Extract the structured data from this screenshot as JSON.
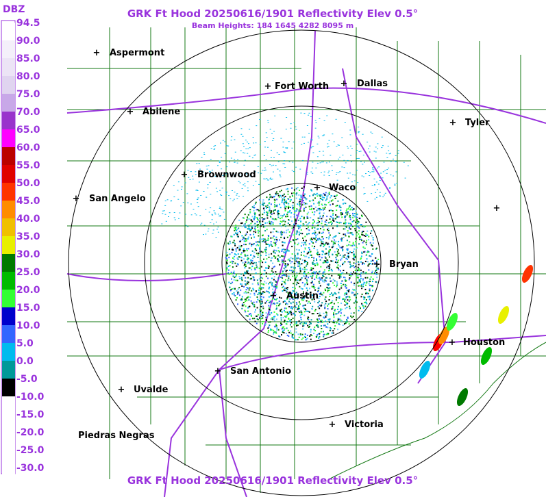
{
  "header": {
    "title": "GRK Ft Hood 20250616/1901 Reflectivity Elev 0.5°",
    "subtitle": "Beam Heights: 184 1645 4282 8095 m"
  },
  "footer": {
    "title": "GRK Ft Hood 20250616/1901 Reflectivity Elev 0.5°"
  },
  "legend": {
    "unit": "DBZ",
    "items": [
      {
        "label": "94.5",
        "color": "#ffffff"
      },
      {
        "label": "90.0",
        "color": "#f4f0fa"
      },
      {
        "label": "85.0",
        "color": "#ece4f6"
      },
      {
        "label": "80.0",
        "color": "#e0d4f0"
      },
      {
        "label": "75.0",
        "color": "#c8a8e8"
      },
      {
        "label": "70.0",
        "color": "#9933cc"
      },
      {
        "label": "65.0",
        "color": "#ff00ff"
      },
      {
        "label": "60.0",
        "color": "#bb0000"
      },
      {
        "label": "55.0",
        "color": "#e00000"
      },
      {
        "label": "50.0",
        "color": "#ff3300"
      },
      {
        "label": "45.0",
        "color": "#ff8c00"
      },
      {
        "label": "40.0",
        "color": "#f0c000"
      },
      {
        "label": "35.0",
        "color": "#e8f000"
      },
      {
        "label": "30.0",
        "color": "#007a00"
      },
      {
        "label": "25.0",
        "color": "#00bb00"
      },
      {
        "label": "20.0",
        "color": "#33ff33"
      },
      {
        "label": "15.0",
        "color": "#0000cc"
      },
      {
        "label": "10.0",
        "color": "#3366ff"
      },
      {
        "label": "5.0",
        "color": "#00bbee"
      },
      {
        "label": "0.0",
        "color": "#009999"
      },
      {
        "label": "-5.0",
        "color": "#000000"
      },
      {
        "label": "-10.0",
        "color": "#ffffff"
      },
      {
        "label": "-15.0",
        "color": "#ffffff"
      },
      {
        "label": "-20.0",
        "color": "#ffffff"
      },
      {
        "label": "-25.0",
        "color": "#ffffff"
      },
      {
        "label": "-30.0",
        "color": "#ffffff"
      }
    ]
  },
  "cities": [
    "Aspermont",
    "Fort Worth",
    "Dallas",
    "Abilene",
    "Tyler",
    "Brownwood",
    "Waco",
    "San Angelo",
    "Bryan",
    "Austin",
    "Houston",
    "San Antonio",
    "Uvalde",
    "Victoria",
    "Piedras Negras"
  ]
}
